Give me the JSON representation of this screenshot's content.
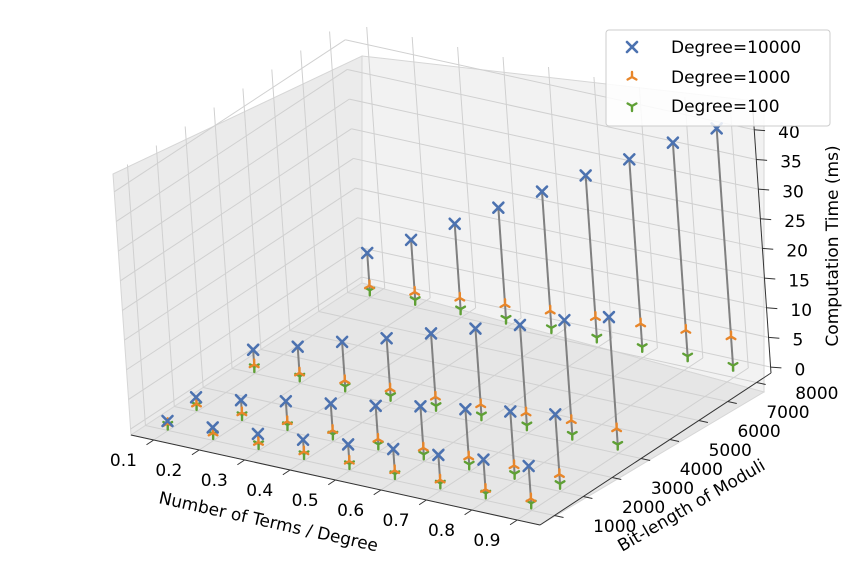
{
  "chart_data": {
    "type": "scatter",
    "title": "",
    "xlabel": "Number of Terms / Degree",
    "ylabel": "Bit-length of Moduli",
    "zlabel": "Computation Time (ms)",
    "x_ticks": [
      "0.1",
      "0.2",
      "0.3",
      "0.4",
      "0.5",
      "0.6",
      "0.7",
      "0.8",
      "0.9"
    ],
    "y_ticks": [
      "1000",
      "2000",
      "3000",
      "4000",
      "5000",
      "6000",
      "7000",
      "8000"
    ],
    "z_ticks": [
      "0",
      "5",
      "10",
      "15",
      "20",
      "25",
      "30",
      "35",
      "40"
    ],
    "xlim": [
      0.05,
      0.95
    ],
    "ylim": [
      500,
      8500
    ],
    "zlim": [
      -1,
      43
    ],
    "grid": true,
    "legend_position": "top-right",
    "legend": [
      "Degree=10000",
      "Degree=1000",
      "Degree=100"
    ],
    "colors": {
      "Degree=10000": "#4c72b0",
      "Degree=1000": "#e8862a",
      "Degree=100": "#5fa035",
      "stem": "#808080"
    },
    "y": [
      1000,
      2000,
      4000,
      8000
    ],
    "series": [
      {
        "name": "Degree=10000",
        "marker": "x",
        "values": {
          "1000": [
            0.6,
            1.2,
            1.8,
            2.5,
            3.4,
            4.3,
            5.0,
            5.9,
            6.5
          ],
          "2000": [
            1.4,
            2.6,
            4.1,
            5.4,
            6.7,
            8.3,
            9.5,
            10.8,
            12.0
          ],
          "4000": [
            3.0,
            5.2,
            7.7,
            10.0,
            12.5,
            15.0,
            17.3,
            19.8,
            22.0
          ],
          "8000": [
            6.5,
            10.4,
            14.8,
            19.2,
            23.6,
            28.0,
            32.4,
            36.9,
            41.0
          ]
        }
      },
      {
        "name": "Degree=1000",
        "marker": "tri_up",
        "values": {
          "1000": [
            0.2,
            0.3,
            0.4,
            0.5,
            0.6,
            0.7,
            0.8,
            0.9,
            1.0
          ],
          "2000": [
            0.3,
            0.5,
            0.7,
            0.9,
            1.1,
            1.3,
            1.5,
            1.7,
            1.9
          ],
          "4000": [
            0.5,
            0.8,
            1.2,
            1.5,
            1.8,
            2.2,
            2.5,
            2.9,
            3.2
          ],
          "8000": [
            1.0,
            1.6,
            2.3,
            2.9,
            3.5,
            4.1,
            4.7,
            5.3,
            5.9
          ]
        }
      },
      {
        "name": "Degree=100",
        "marker": "tri_down",
        "values": {
          "1000": [
            0.0,
            0.1,
            0.1,
            0.1,
            0.1,
            0.1,
            0.2,
            0.2,
            0.2
          ],
          "2000": [
            0.1,
            0.1,
            0.1,
            0.2,
            0.2,
            0.2,
            0.2,
            0.3,
            0.3
          ],
          "4000": [
            0.1,
            0.2,
            0.2,
            0.3,
            0.3,
            0.4,
            0.4,
            0.5,
            0.5
          ],
          "8000": [
            0.2,
            0.3,
            0.4,
            0.5,
            0.6,
            0.7,
            0.8,
            0.9,
            1.0
          ]
        }
      }
    ]
  }
}
